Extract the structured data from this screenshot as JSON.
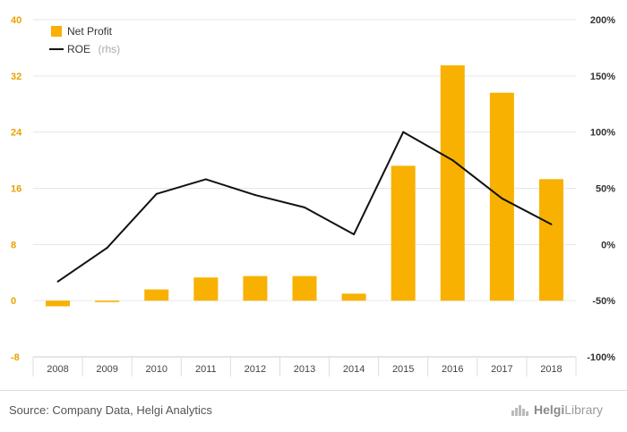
{
  "chart_data": {
    "type": "bar",
    "categories": [
      "2008",
      "2009",
      "2010",
      "2011",
      "2012",
      "2013",
      "2014",
      "2015",
      "2016",
      "2017",
      "2018"
    ],
    "series": [
      {
        "name": "Net Profit",
        "type": "bar",
        "axis": "left",
        "values": [
          -0.8,
          -0.2,
          1.6,
          3.3,
          3.5,
          3.5,
          1.0,
          19.2,
          33.5,
          29.6,
          17.3
        ]
      },
      {
        "name": "ROE",
        "name_suffix": "(rhs)",
        "type": "line",
        "axis": "right",
        "values": [
          -33,
          -3,
          45,
          58,
          44,
          33,
          9,
          100,
          75,
          41,
          18
        ]
      }
    ],
    "y_left": {
      "ticks": [
        "40",
        "32",
        "24",
        "16",
        "8",
        "0",
        "-8"
      ],
      "lim": [
        -8,
        40
      ]
    },
    "y_right": {
      "ticks": [
        "200%",
        "150%",
        "100%",
        "50%",
        "0%",
        "-50%",
        "-100%"
      ],
      "lim": [
        -100,
        200
      ]
    },
    "colors": {
      "bar": "#f8b100",
      "line": "#111111"
    },
    "grid": true,
    "legend": "top-left"
  },
  "footer": {
    "source": "Source: Company Data, Helgi Analytics",
    "brand_prefix": "Helgi",
    "brand_suffix": "Library"
  }
}
